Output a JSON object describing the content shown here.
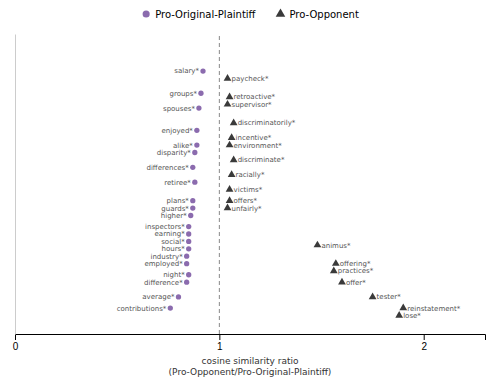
{
  "chart_data": {
    "type": "scatter",
    "xlabel": "cosine similarity ratio\n(Pro-Opponent/Pro-Original-Plaintiff)",
    "xlim": [
      0.0,
      2.3
    ],
    "xticks": [
      0,
      1,
      2
    ],
    "ylim": [
      -1.5,
      39
    ],
    "tick_labels": "x",
    "legend": "top",
    "vline_x": 1.0,
    "series": [
      {
        "name": "Pro-Original-Plaintiff",
        "color": "#8B6BAE",
        "marker": "circle",
        "labels": [
          "salary*",
          "groups*",
          "spouses*",
          "enjoyed*",
          "alike*",
          "disparity*",
          "differences*",
          "retiree*",
          "plans*",
          "guards*",
          "higher*",
          "inspectors*",
          "earning*",
          "social*",
          "hours*",
          "industry*",
          "employed*",
          "night*",
          "difference*",
          "average*",
          "contributions*"
        ],
        "x": [
          0.92,
          0.91,
          0.9,
          0.89,
          0.89,
          0.88,
          0.87,
          0.88,
          0.87,
          0.87,
          0.86,
          0.85,
          0.85,
          0.85,
          0.85,
          0.84,
          0.84,
          0.85,
          0.84,
          0.8,
          0.76
        ],
        "y": [
          34,
          31,
          29,
          26,
          24,
          23,
          21,
          19,
          16.5,
          15.5,
          14.5,
          13,
          12,
          11,
          10,
          9,
          8,
          6.5,
          5.5,
          3.5,
          2
        ]
      },
      {
        "name": "Pro-Opponent",
        "color": "#3a3a3a",
        "marker": "triangle",
        "labels": [
          "paycheck*",
          "retroactive*",
          "supervisor*",
          "discriminatorily*",
          "incentive*",
          "environment*",
          "discriminate*",
          "racially*",
          "victims*",
          "offers*",
          "unfairly*",
          "animus*",
          "offering*",
          "practices*",
          "offer*",
          "tester*",
          "reinstatement*",
          "lose*"
        ],
        "x": [
          1.04,
          1.05,
          1.04,
          1.07,
          1.06,
          1.05,
          1.07,
          1.06,
          1.05,
          1.05,
          1.04,
          1.48,
          1.57,
          1.56,
          1.6,
          1.75,
          1.9,
          1.88
        ],
        "y": [
          33,
          30.5,
          29.5,
          27,
          25,
          24,
          22,
          20,
          18,
          16.5,
          15.5,
          10.5,
          8,
          7,
          5.5,
          3.5,
          2,
          1
        ]
      }
    ]
  }
}
